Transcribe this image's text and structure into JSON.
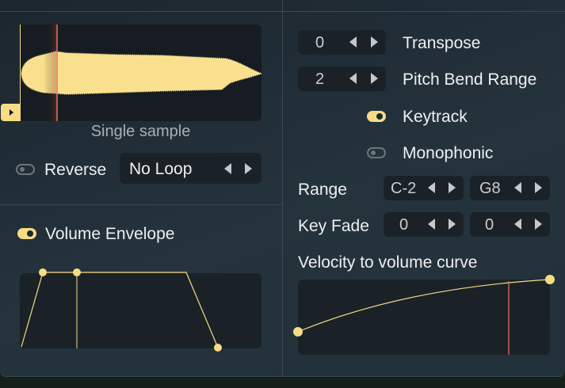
{
  "sample": {
    "caption": "Single sample",
    "reverse_label": "Reverse",
    "reverse_on": false,
    "loop_mode": "No Loop"
  },
  "envelope": {
    "label": "Volume Envelope",
    "enabled": true
  },
  "right": {
    "transpose": {
      "label": "Transpose",
      "value": "0"
    },
    "pitch_bend": {
      "label": "Pitch Bend Range",
      "value": "2"
    },
    "keytrack": {
      "label": "Keytrack",
      "on": true
    },
    "monophonic": {
      "label": "Monophonic",
      "on": false
    },
    "range": {
      "label": "Range",
      "low": "C-2",
      "high": "G8"
    },
    "key_fade": {
      "label": "Key Fade",
      "low": "0",
      "high": "0"
    },
    "velocity": {
      "label": "Velocity to volume curve"
    }
  },
  "colors": {
    "accent": "#f7dc85",
    "playhead": "#f0735a",
    "background": "#222e37"
  }
}
